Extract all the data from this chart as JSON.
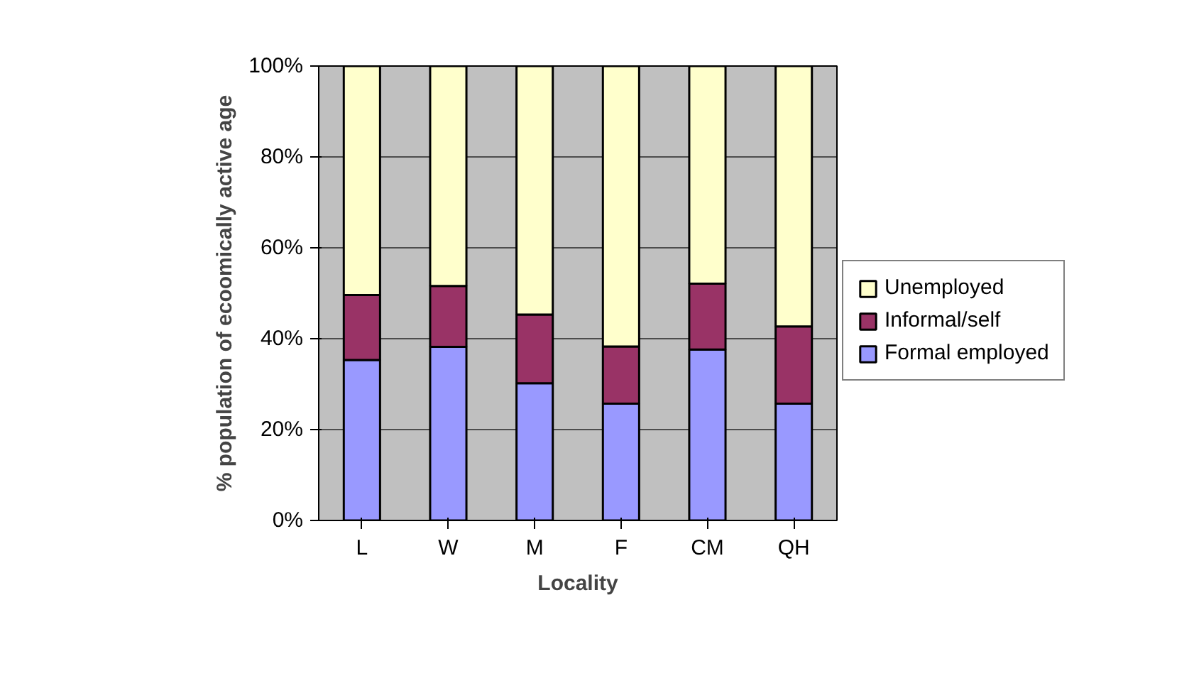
{
  "chart_data": {
    "type": "bar",
    "stacked": true,
    "xlabel": "Locality",
    "ylabel": "% population of ecoomically active age",
    "categories": [
      "L",
      "W",
      "M",
      "F",
      "CM",
      "QH"
    ],
    "series": [
      {
        "name": "Formal employed",
        "color": "#9999ff",
        "values": [
          35.3,
          38.2,
          30.2,
          25.7,
          37.6,
          25.7
        ]
      },
      {
        "name": "Informal/self",
        "color": "#993366",
        "values": [
          14.3,
          13.4,
          15.1,
          12.6,
          14.5,
          17.0
        ]
      },
      {
        "name": "Unemployed",
        "color": "#ffffcc",
        "values": [
          50.4,
          48.4,
          54.7,
          61.7,
          47.9,
          57.3
        ]
      }
    ],
    "ylim": [
      0,
      100
    ],
    "yticks": [
      {
        "value": 0,
        "label": "0%"
      },
      {
        "value": 20,
        "label": "20%"
      },
      {
        "value": 40,
        "label": "40%"
      },
      {
        "value": 60,
        "label": "60%"
      },
      {
        "value": 80,
        "label": "80%"
      },
      {
        "value": 100,
        "label": "100%"
      }
    ],
    "grid": "y",
    "legend": "right"
  }
}
